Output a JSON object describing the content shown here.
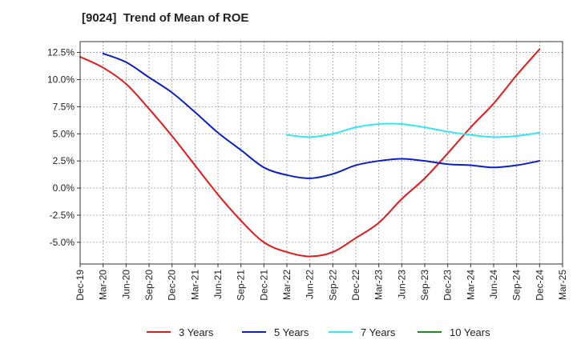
{
  "chart_data": {
    "type": "line",
    "title": "[9024]  Trend of Mean of ROE",
    "xlabel": "",
    "ylabel": "",
    "x_ticks": [
      "Dec-19",
      "Mar-20",
      "Jun-20",
      "Sep-20",
      "Dec-20",
      "Mar-21",
      "Jun-21",
      "Sep-21",
      "Dec-21",
      "Mar-22",
      "Jun-22",
      "Sep-22",
      "Dec-22",
      "Mar-23",
      "Jun-23",
      "Sep-23",
      "Dec-23",
      "Mar-24",
      "Jun-24",
      "Sep-24",
      "Dec-24",
      "Mar-25"
    ],
    "y_ticks": [
      "12.5%",
      "10.0%",
      "7.5%",
      "5.0%",
      "2.5%",
      "0.0%",
      "-2.5%",
      "-5.0%"
    ],
    "y_tick_values": [
      12.5,
      10.0,
      7.5,
      5.0,
      2.5,
      0.0,
      -2.5,
      -5.0
    ],
    "ylim": [
      -7.0,
      13.5
    ],
    "grid": true,
    "legend_position": "bottom",
    "series": [
      {
        "name": "3 Years",
        "color": "#e31a1c",
        "x": [
          "Dec-19",
          "Mar-20",
          "Jun-20",
          "Sep-20",
          "Dec-20",
          "Mar-21",
          "Jun-21",
          "Sep-21",
          "Dec-21",
          "Mar-22",
          "Jun-22",
          "Sep-22",
          "Dec-22",
          "Mar-23",
          "Jun-23",
          "Sep-23",
          "Dec-23",
          "Mar-24",
          "Jun-24",
          "Sep-24",
          "Dec-24"
        ],
        "values": [
          12.1,
          11.1,
          9.6,
          7.3,
          4.8,
          2.1,
          -0.6,
          -3.0,
          -5.0,
          -5.9,
          -6.3,
          -5.9,
          -4.6,
          -3.2,
          -1.0,
          0.9,
          3.2,
          5.6,
          7.8,
          10.4,
          12.8
        ]
      },
      {
        "name": "5 Years",
        "color": "#0a1fc8",
        "x": [
          "Mar-20",
          "Jun-20",
          "Sep-20",
          "Dec-20",
          "Mar-21",
          "Jun-21",
          "Sep-21",
          "Dec-21",
          "Mar-22",
          "Jun-22",
          "Sep-22",
          "Dec-22",
          "Mar-23",
          "Jun-23",
          "Sep-23",
          "Dec-23",
          "Mar-24",
          "Jun-24",
          "Sep-24",
          "Dec-24"
        ],
        "values": [
          12.4,
          11.6,
          10.2,
          8.8,
          7.0,
          5.1,
          3.5,
          1.9,
          1.2,
          0.9,
          1.3,
          2.1,
          2.5,
          2.7,
          2.5,
          2.2,
          2.1,
          1.9,
          2.1,
          2.5
        ]
      },
      {
        "name": "7 Years",
        "color": "#33e6f0",
        "x": [
          "Mar-22",
          "Jun-22",
          "Sep-22",
          "Dec-22",
          "Mar-23",
          "Jun-23",
          "Sep-23",
          "Dec-23",
          "Mar-24",
          "Jun-24",
          "Sep-24",
          "Dec-24"
        ],
        "values": [
          4.9,
          4.7,
          5.0,
          5.6,
          5.9,
          5.9,
          5.6,
          5.2,
          4.9,
          4.7,
          4.8,
          5.1
        ]
      },
      {
        "name": "10 Years",
        "color": "#1a8a1a",
        "x": [],
        "values": []
      }
    ]
  }
}
